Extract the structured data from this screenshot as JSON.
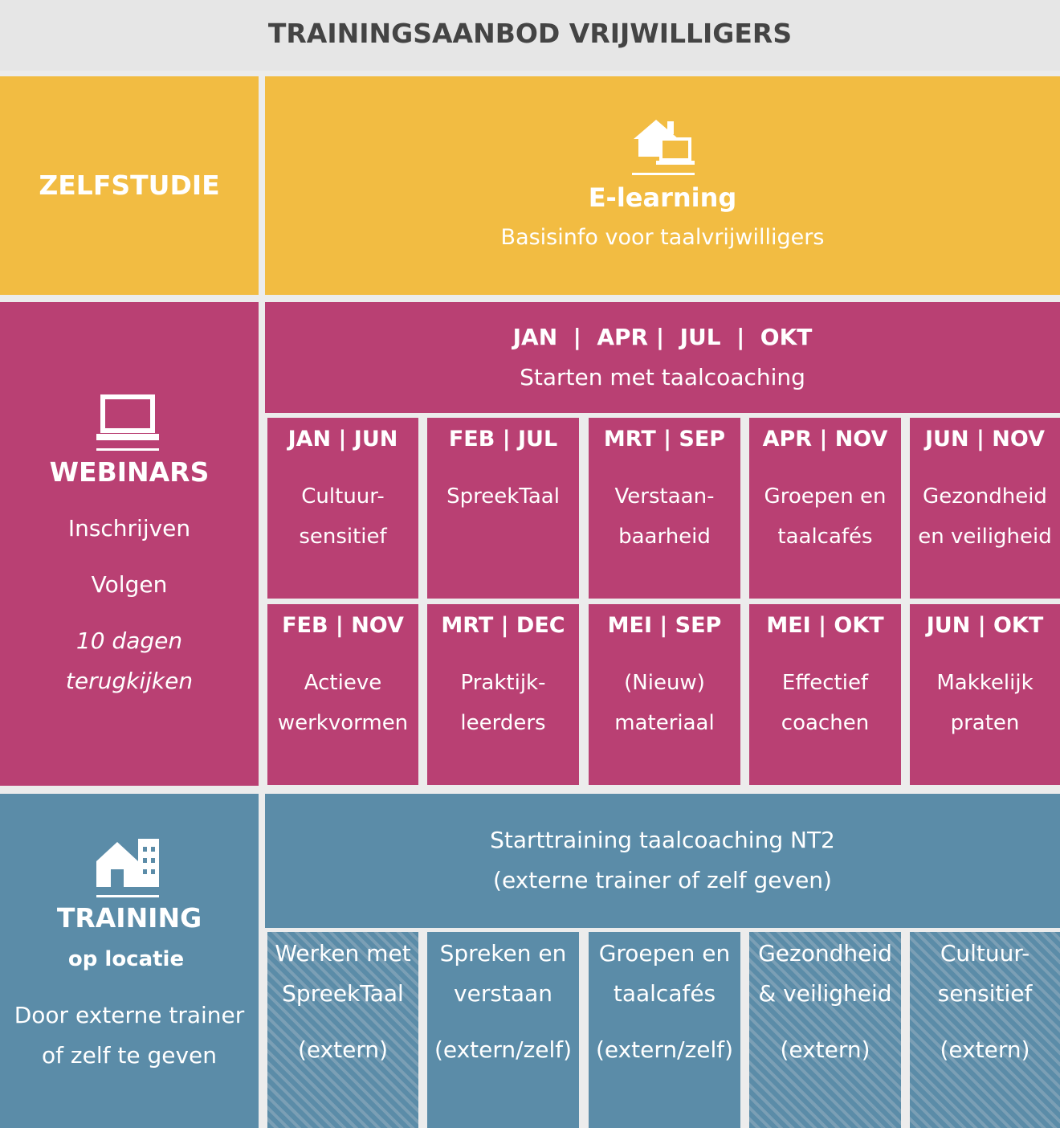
{
  "title": "TRAININGSAANBOD VRIJWILLIGERS",
  "zelfstudie": {
    "label": "ZELFSTUDIE",
    "title": "E-learning",
    "subtitle": "Basisinfo voor taalvrijwilligers"
  },
  "webinars": {
    "label": "WEBINARS",
    "lines": [
      "Inschrijven",
      "Volgen"
    ],
    "note": [
      "10 dagen",
      "terugkijken"
    ],
    "main": {
      "months": "JAN  |  APR |  JUL  |  OKT",
      "title": "Starten met taalcoaching"
    },
    "sessions": [
      {
        "months": "JAN | JUN",
        "lines": [
          "Cultuur-",
          "sensitief"
        ]
      },
      {
        "months": "FEB | JUL",
        "lines": [
          "SpreekTaal"
        ]
      },
      {
        "months": "MRT | SEP",
        "lines": [
          "Verstaan-",
          "baarheid"
        ]
      },
      {
        "months": "APR | NOV",
        "lines": [
          "Groepen en",
          "taalcafés"
        ]
      },
      {
        "months": "JUN | NOV",
        "lines": [
          "Gezondheid",
          "en veiligheid"
        ]
      },
      {
        "months": "FEB | NOV",
        "lines": [
          "Actieve",
          "werkvormen"
        ]
      },
      {
        "months": "MRT | DEC",
        "lines": [
          "Praktijk-",
          "leerders"
        ]
      },
      {
        "months": "MEI | SEP",
        "lines": [
          "(Nieuw)",
          "materiaal"
        ]
      },
      {
        "months": "MEI | OKT",
        "lines": [
          "Effectief",
          "coachen"
        ]
      },
      {
        "months": "JUN | OKT",
        "lines": [
          "Makkelijk",
          "praten"
        ]
      }
    ]
  },
  "training": {
    "label": "TRAINING",
    "sublabel": "op locatie",
    "description": [
      "Door externe trainer",
      "of zelf te geven"
    ],
    "main": [
      "Starttraining taalcoaching NT2",
      "(externe trainer of zelf geven)"
    ],
    "courses": [
      {
        "lines": [
          "Werken met",
          "SpreekTaal"
        ],
        "mode": "(extern)",
        "hatched": true
      },
      {
        "lines": [
          "Spreken en",
          "verstaan"
        ],
        "mode": "(extern/zelf)",
        "hatched": false
      },
      {
        "lines": [
          "Groepen en",
          "taalcafés"
        ],
        "mode": "(extern/zelf)",
        "hatched": false
      },
      {
        "lines": [
          "Gezondheid",
          "& veiligheid"
        ],
        "mode": "(extern)",
        "hatched": true
      },
      {
        "lines": [
          "Cultuur-",
          "sensitief"
        ],
        "mode": "(extern)",
        "hatched": true
      }
    ]
  }
}
